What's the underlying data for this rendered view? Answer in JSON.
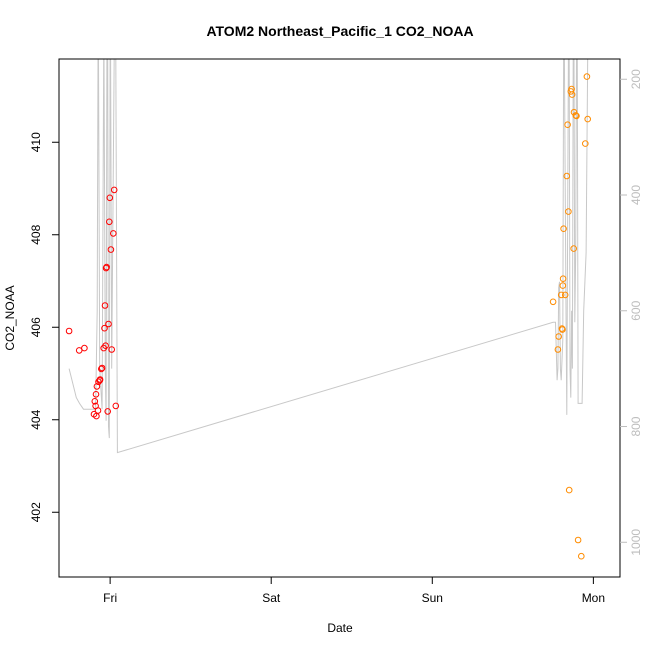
{
  "chart_data": {
    "type": "scatter",
    "title": "ATOM2 Northeast_Pacific_1 CO2_NOAA",
    "xlabel": "Date",
    "ylabel": "CO2_NOAA",
    "x_ticks": [
      {
        "x": 1.0,
        "label": "Fri"
      },
      {
        "x": 2.0,
        "label": "Sat"
      },
      {
        "x": 3.0,
        "label": "Sun"
      },
      {
        "x": 4.0,
        "label": "Mon"
      }
    ],
    "xlim": [
      0.6826,
      4.1653
    ],
    "ylim": [
      400.6,
      411.8
    ],
    "y_ticks": [
      402,
      404,
      406,
      408,
      410
    ],
    "right_axis": {
      "ylim": [
        1060,
        165
      ],
      "ticks": [
        200,
        400,
        600,
        800,
        1000
      ],
      "color": "#bdbdbd"
    },
    "colors": {
      "series_1": "#ff0000",
      "series_2": "#ff8c00",
      "line": "#c8c8c8"
    },
    "series": [
      {
        "color": "#ff0000",
        "marker": "open-circle",
        "points": [
          [
            0.745,
            405.92
          ],
          [
            0.808,
            405.5
          ],
          [
            0.84,
            405.55
          ],
          [
            0.9,
            404.12
          ],
          [
            0.915,
            404.08
          ],
          [
            0.905,
            404.4
          ],
          [
            0.91,
            404.3
          ],
          [
            0.918,
            404.72
          ],
          [
            0.912,
            404.55
          ],
          [
            0.925,
            404.2
          ],
          [
            0.928,
            404.82
          ],
          [
            0.935,
            404.85
          ],
          [
            0.938,
            404.87
          ],
          [
            0.945,
            405.1
          ],
          [
            0.95,
            405.12
          ],
          [
            0.96,
            405.55
          ],
          [
            0.965,
            405.98
          ],
          [
            0.968,
            406.47
          ],
          [
            0.972,
            405.6
          ],
          [
            0.975,
            407.28
          ],
          [
            0.978,
            407.3
          ],
          [
            0.985,
            404.18
          ],
          [
            0.99,
            406.07
          ],
          [
            0.995,
            408.28
          ],
          [
            0.998,
            408.8
          ],
          [
            1.005,
            407.68
          ],
          [
            1.01,
            405.52
          ],
          [
            1.02,
            408.03
          ],
          [
            1.025,
            408.97
          ],
          [
            1.035,
            404.3
          ]
        ]
      },
      {
        "color": "#ff8c00",
        "marker": "open-circle",
        "points": [
          [
            3.75,
            406.55
          ],
          [
            3.78,
            405.52
          ],
          [
            3.785,
            405.8
          ],
          [
            3.8,
            406.7
          ],
          [
            3.805,
            405.97
          ],
          [
            3.808,
            405.95
          ],
          [
            3.81,
            406.9
          ],
          [
            3.812,
            407.05
          ],
          [
            3.815,
            408.13
          ],
          [
            3.825,
            406.7
          ],
          [
            3.835,
            409.27
          ],
          [
            3.84,
            410.38
          ],
          [
            3.845,
            408.5
          ],
          [
            3.85,
            402.48
          ],
          [
            3.86,
            411.1
          ],
          [
            3.865,
            411.15
          ],
          [
            3.868,
            411.03
          ],
          [
            3.878,
            407.7
          ],
          [
            3.88,
            410.65
          ],
          [
            3.89,
            410.58
          ],
          [
            3.895,
            410.57
          ],
          [
            3.905,
            401.4
          ],
          [
            3.925,
            401.05
          ],
          [
            3.95,
            409.97
          ],
          [
            3.96,
            411.42
          ],
          [
            3.965,
            410.5
          ]
        ]
      }
    ],
    "line_series": {
      "color": "#c8c8c8",
      "axis": "right",
      "points": [
        [
          0.745,
          700
        ],
        [
          0.79,
          750
        ],
        [
          0.81,
          760
        ],
        [
          0.835,
          770
        ],
        [
          0.86,
          770
        ],
        [
          0.91,
          770
        ],
        [
          0.92,
          600
        ],
        [
          0.925,
          160
        ],
        [
          0.928,
          160
        ],
        [
          0.935,
          700
        ],
        [
          0.95,
          770
        ],
        [
          0.96,
          160
        ],
        [
          0.962,
          160
        ],
        [
          0.97,
          700
        ],
        [
          0.975,
          790
        ],
        [
          0.98,
          160
        ],
        [
          0.985,
          160
        ],
        [
          0.99,
          800
        ],
        [
          0.995,
          820
        ],
        [
          1.0,
          160
        ],
        [
          1.003,
          160
        ],
        [
          1.01,
          700
        ],
        [
          1.025,
          160
        ],
        [
          1.03,
          160
        ],
        [
          1.035,
          160
        ],
        [
          1.045,
          845
        ],
        [
          3.75,
          620
        ],
        [
          3.765,
          620
        ],
        [
          3.775,
          720
        ],
        [
          3.78,
          700
        ],
        [
          3.785,
          560
        ],
        [
          3.79,
          550
        ],
        [
          3.795,
          700
        ],
        [
          3.8,
          720
        ],
        [
          3.81,
          650
        ],
        [
          3.815,
          160
        ],
        [
          3.82,
          160
        ],
        [
          3.83,
          600
        ],
        [
          3.835,
          780
        ],
        [
          3.845,
          160
        ],
        [
          3.85,
          160
        ],
        [
          3.855,
          700
        ],
        [
          3.86,
          750
        ],
        [
          3.865,
          600
        ],
        [
          3.87,
          700
        ],
        [
          3.875,
          160
        ],
        [
          3.88,
          160
        ],
        [
          3.885,
          620
        ],
        [
          3.89,
          500
        ],
        [
          3.895,
          160
        ],
        [
          3.9,
          160
        ],
        [
          3.905,
          760
        ],
        [
          3.92,
          760
        ],
        [
          3.93,
          760
        ],
        [
          3.94,
          600
        ],
        [
          3.955,
          500
        ],
        [
          3.965,
          160
        ]
      ]
    }
  }
}
